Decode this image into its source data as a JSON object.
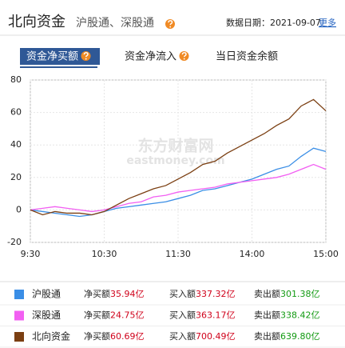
{
  "header": {
    "title": "北向资金",
    "subtitle": "沪股通、深股通",
    "date_label": "数据日期：",
    "date": "2021-09-07",
    "more": "更多"
  },
  "tabs": [
    {
      "label": "资金净买额",
      "active": true,
      "help": true
    },
    {
      "label": "资金净流入",
      "active": false,
      "help": true
    },
    {
      "label": "当日资金余额",
      "active": false,
      "help": false
    }
  ],
  "chart_data": {
    "type": "line",
    "watermark": [
      "东方财富网",
      "eastmoney.com"
    ],
    "x": [
      0,
      10,
      20,
      30,
      40,
      50,
      60,
      70,
      80,
      90,
      100,
      110,
      120,
      130,
      140,
      150,
      160,
      170,
      180,
      190,
      200,
      210,
      220,
      230,
      240
    ],
    "xlim": [
      0,
      240
    ],
    "xticks": [
      {
        "value": 0,
        "label": "9:30"
      },
      {
        "value": 60,
        "label": "10:30"
      },
      {
        "value": 120,
        "label": "11:30"
      },
      {
        "value": 180,
        "label": "14:00"
      },
      {
        "value": 240,
        "label": "15:00"
      }
    ],
    "ylim": [
      -20,
      80
    ],
    "yticks": [
      -20,
      0,
      20,
      40,
      60,
      80
    ],
    "grid": true,
    "series": [
      {
        "name": "沪股通",
        "color": "#3a8ee6",
        "values": [
          0,
          -1,
          -2,
          -3,
          -4,
          -3,
          -1,
          1,
          2,
          3,
          4,
          5,
          7,
          9,
          12,
          13,
          15,
          17,
          19,
          22,
          25,
          27,
          33,
          38,
          36
        ]
      },
      {
        "name": "深股通",
        "color": "#f25ff2",
        "values": [
          0,
          1,
          2,
          1,
          0,
          -1,
          0,
          2,
          4,
          5,
          8,
          9,
          11,
          12,
          13,
          14,
          16,
          17,
          18,
          19,
          20,
          22,
          25,
          28,
          25
        ]
      },
      {
        "name": "北向资金",
        "color": "#7b3f12",
        "values": [
          0,
          -3,
          -1,
          -2,
          -2,
          -3,
          -1,
          3,
          7,
          10,
          13,
          15,
          19,
          23,
          28,
          30,
          35,
          39,
          43,
          47,
          52,
          56,
          64,
          68,
          61
        ]
      }
    ]
  },
  "legend_table": {
    "rows": [
      {
        "net_label": "净买额",
        "net": "35.94亿",
        "buy_label": "买入额",
        "buy": "337.32亿",
        "sell_label": "卖出额",
        "sell": "301.38亿"
      },
      {
        "net_label": "净买额",
        "net": "24.75亿",
        "buy_label": "买入额",
        "buy": "363.17亿",
        "sell_label": "卖出额",
        "sell": "338.42亿"
      },
      {
        "net_label": "净买额",
        "net": "60.69亿",
        "buy_label": "买入额",
        "buy": "700.49亿",
        "sell_label": "卖出额",
        "sell": "639.80亿"
      }
    ]
  }
}
